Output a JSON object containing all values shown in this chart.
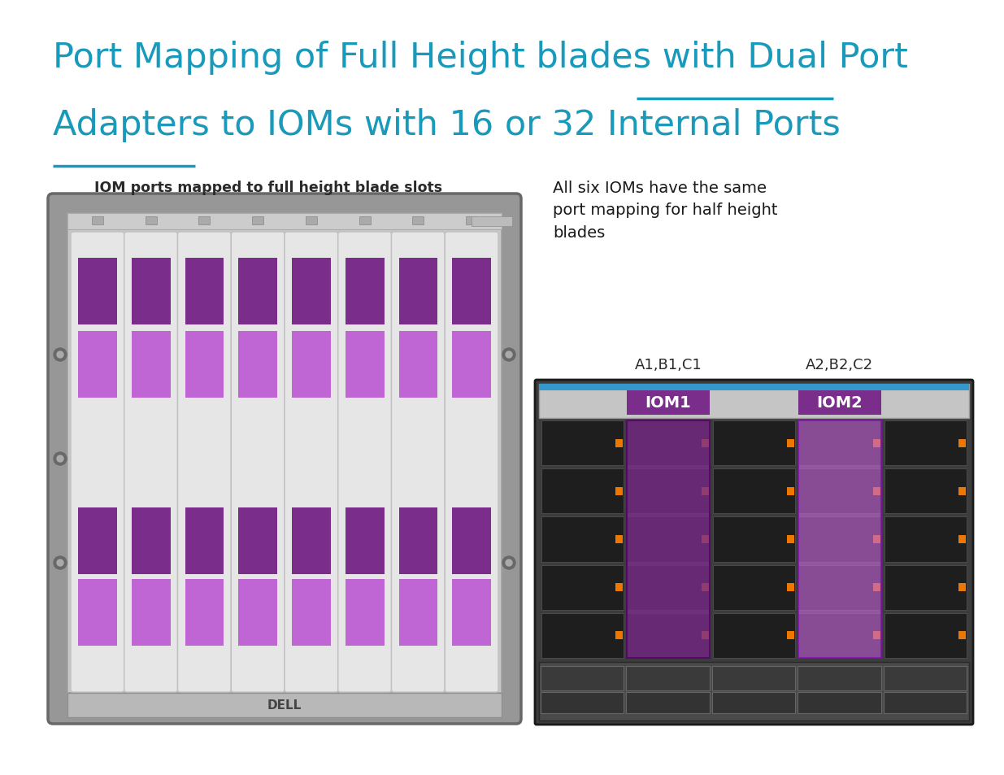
{
  "title_color": "#1a9abb",
  "left_caption": "IOM ports mapped to full height blade slots",
  "right_caption": "All six IOMs have the same\nport mapping for half height\nblades",
  "iom1_label": "IOM1",
  "iom2_label": "IOM2",
  "a1b1c1_label": "A1,B1,C1",
  "a2b2c2_label": "A2,B2,C2",
  "dark_purple": "#7b2d8b",
  "light_purple": "#c066d4",
  "bg_color": "#ffffff",
  "chassis_dark": "#8a8a8a",
  "chassis_mid": "#b0b0b0",
  "chassis_light": "#d8d8d8",
  "blade_bg": "#e4e4e4"
}
